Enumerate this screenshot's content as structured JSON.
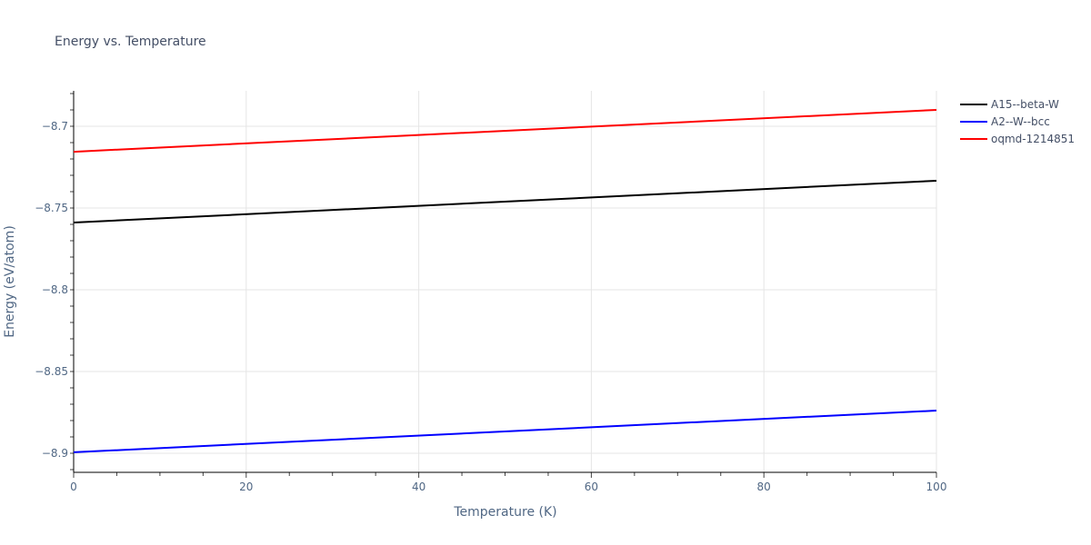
{
  "chart_data": {
    "type": "line",
    "title": "Energy vs. Temperature",
    "xlabel": "Temperature (K)",
    "ylabel": "Energy (eV/atom)",
    "xlim": [
      0,
      100
    ],
    "ylim": [
      -8.912,
      -8.678
    ],
    "xticks": [
      0,
      20,
      40,
      60,
      80,
      100
    ],
    "yticks": [
      -8.7,
      -8.75,
      -8.8,
      -8.85,
      -8.9
    ],
    "ytick_labels": [
      "−8.7",
      "−8.75",
      "−8.8",
      "−8.85",
      "−8.9"
    ],
    "grid": true,
    "legend_position": "right-top",
    "series": [
      {
        "name": "A15--beta-W",
        "color": "#000000",
        "x": [
          0,
          100
        ],
        "values": [
          -8.7589,
          -8.7333
        ]
      },
      {
        "name": "A2--W--bcc",
        "color": "#0000ff",
        "x": [
          0,
          100
        ],
        "values": [
          -8.8994,
          -8.8739
        ]
      },
      {
        "name": "oqmd-1214851",
        "color": "#ff0000",
        "x": [
          0,
          100
        ],
        "values": [
          -8.7156,
          -8.69
        ]
      }
    ]
  }
}
